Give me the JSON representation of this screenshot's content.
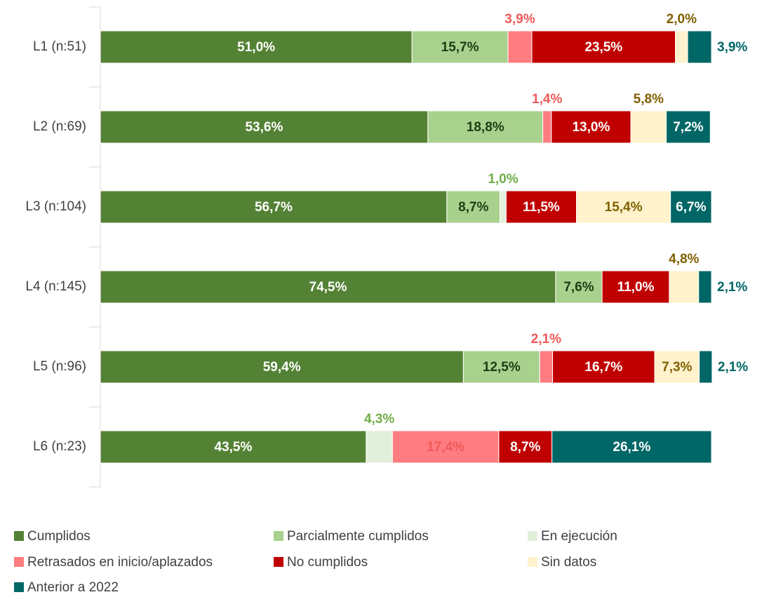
{
  "chart_data": {
    "type": "stacked_bar_horizontal",
    "categories": [
      "L1 (n:51)",
      "L2 (n:69)",
      "L3 (n:104)",
      "L4 (n:145)",
      "L5 (n:96)",
      "L6 (n:23)"
    ],
    "xlim": [
      0,
      100
    ],
    "series": [
      {
        "name": "Cumplidos",
        "color": "#548235",
        "label_color": "#ffffff",
        "values": [
          51.0,
          53.6,
          56.7,
          74.5,
          59.4,
          43.5
        ],
        "value_labels": [
          "51,0%",
          "53,6%",
          "56,7%",
          "74,5%",
          "59,4%",
          "43,5%"
        ]
      },
      {
        "name": "Parcialmente cumplidos",
        "color": "#a9d18e",
        "label_color": "#1e3d12",
        "values": [
          15.7,
          18.8,
          8.7,
          7.6,
          12.5,
          null
        ],
        "value_labels": [
          "15,7%",
          "18,8%",
          "8,7%",
          "7,6%",
          "12,5%",
          null
        ]
      },
      {
        "name": "En ejecución",
        "color": "#e2efda",
        "label_color": "#70ad47",
        "values": [
          null,
          null,
          1.0,
          null,
          null,
          4.3
        ],
        "value_labels": [
          null,
          null,
          "1,0%",
          null,
          null,
          "4,3%"
        ]
      },
      {
        "name": "Retrasados en inicio/aplazados",
        "color": "#ff7c80",
        "label_color": "#f05a5a",
        "values": [
          3.9,
          1.4,
          null,
          null,
          2.1,
          17.4
        ],
        "value_labels": [
          "3,9%",
          "1,4%",
          null,
          null,
          "2,1%",
          "17,4%"
        ]
      },
      {
        "name": "No cumplidos",
        "color": "#c00000",
        "label_color": "#ffffff",
        "values": [
          23.5,
          13.0,
          11.5,
          11.0,
          16.7,
          8.7
        ],
        "value_labels": [
          "23,5%",
          "13,0%",
          "11,5%",
          "11,0%",
          "16,7%",
          "8,7%"
        ]
      },
      {
        "name": "Sin datos",
        "color": "#fff2cc",
        "label_color": "#7f6000",
        "values": [
          2.0,
          5.8,
          15.4,
          4.8,
          7.3,
          null
        ],
        "value_labels": [
          "2,0%",
          "5,8%",
          "15,4%",
          "4,8%",
          "7,3%",
          null
        ]
      },
      {
        "name": "Anterior a 2022",
        "color": "#006666",
        "label_color": "#006666",
        "values": [
          3.9,
          7.2,
          6.7,
          2.1,
          2.1,
          26.1
        ],
        "value_labels": [
          "3,9%",
          "7,2%",
          "6,7%",
          "2,1%",
          "2,1%",
          "26,1%"
        ]
      }
    ]
  }
}
